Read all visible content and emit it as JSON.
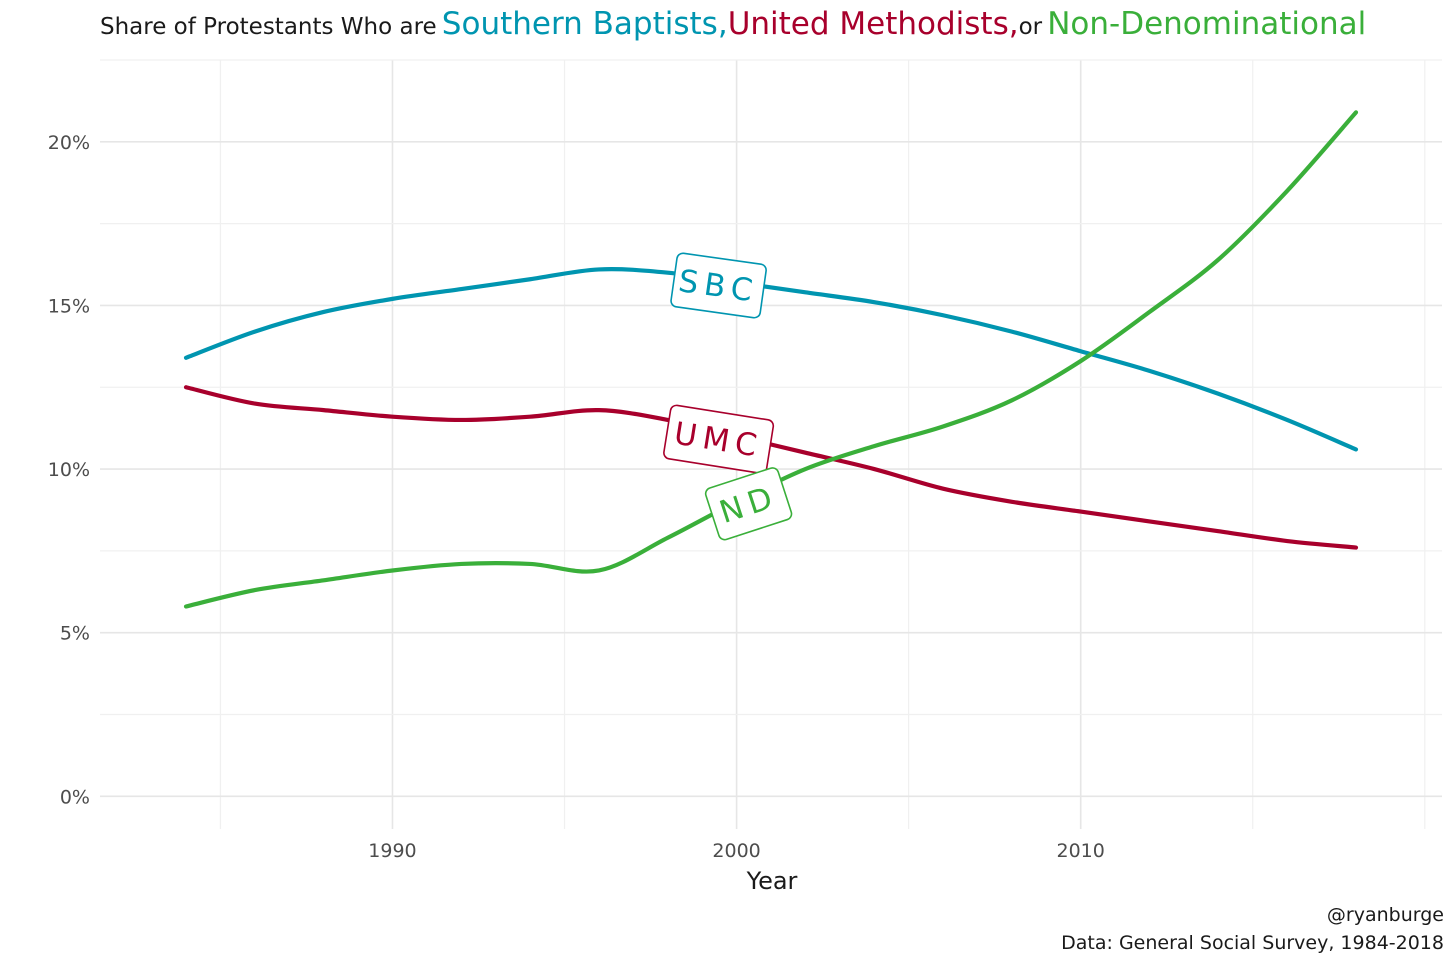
{
  "title": {
    "prefix": "Share of Protestants  Who are",
    "sbc": "Southern Baptists,",
    "umc": "United Methodists,",
    "or": "or",
    "nd": "Non-Denominational"
  },
  "caption": {
    "handle": "@ryanburge",
    "source": "Data: General Social Survey, 1984-2018"
  },
  "chart_data": {
    "type": "line",
    "title": "Share of Protestants Who are Southern Baptists, United Methodists, or Non-Denominational",
    "xlabel": "Year",
    "ylabel": "",
    "xlim": [
      1981.5,
      2020.5
    ],
    "ylim": [
      -1,
      22.5
    ],
    "x_ticks": [
      1990,
      2000,
      2010
    ],
    "x_tick_labels": [
      "1990",
      "2000",
      "2010"
    ],
    "y_ticks": [
      0,
      5,
      10,
      15,
      20
    ],
    "y_tick_labels": [
      "0%",
      "5%",
      "10%",
      "15%",
      "20%"
    ],
    "grid": true,
    "legend": "none (direct labels on lines)",
    "x": [
      1984,
      1986,
      1988,
      1990,
      1992,
      1994,
      1996,
      1998,
      2000,
      2002,
      2004,
      2006,
      2008,
      2010,
      2012,
      2014,
      2016,
      2018
    ],
    "series": [
      {
        "name": "Southern Baptists",
        "label": "SBC",
        "color": "#0095b0",
        "label_x": 2000,
        "values": [
          13.4,
          14.2,
          14.8,
          15.2,
          15.5,
          15.8,
          16.1,
          16.0,
          15.7,
          15.4,
          15.1,
          14.7,
          14.2,
          13.6,
          13.0,
          12.3,
          11.5,
          10.6
        ]
      },
      {
        "name": "United Methodists",
        "label": "UMC",
        "color": "#a8002c",
        "label_x": 2000,
        "values": [
          12.5,
          12.0,
          11.8,
          11.6,
          11.5,
          11.6,
          11.8,
          11.5,
          11.0,
          10.5,
          10.0,
          9.4,
          9.0,
          8.7,
          8.4,
          8.1,
          7.8,
          7.6
        ]
      },
      {
        "name": "Non-Denominational",
        "label": "ND",
        "color": "#3aaf3a",
        "label_x": 2000,
        "values": [
          5.8,
          6.3,
          6.6,
          6.9,
          7.1,
          7.1,
          6.9,
          7.9,
          9.0,
          10.0,
          10.7,
          11.3,
          12.1,
          13.3,
          14.8,
          16.4,
          18.5,
          20.9
        ]
      }
    ]
  }
}
